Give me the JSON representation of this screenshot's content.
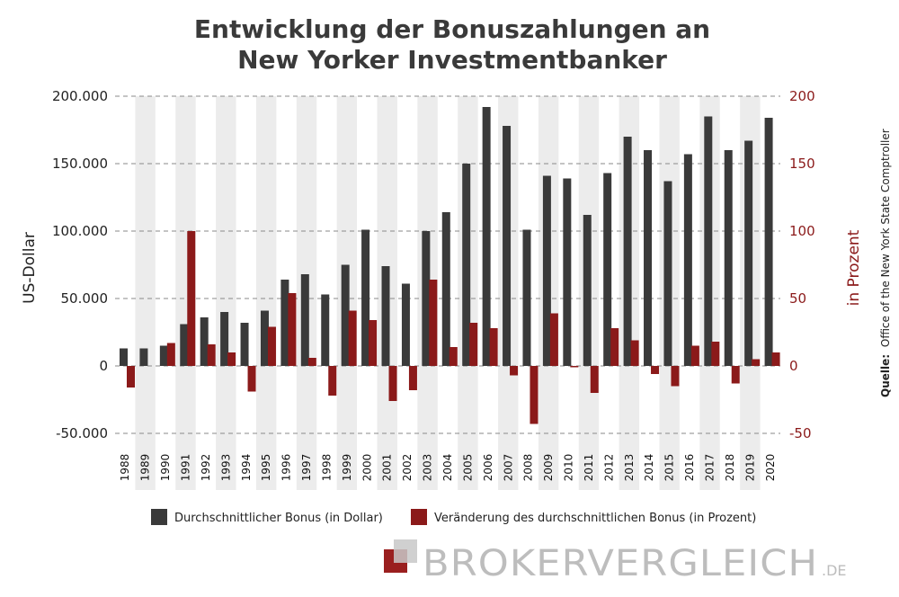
{
  "chart_data": {
    "type": "bar",
    "title_lines": [
      "Entwicklung der Bonuszahlungen an",
      "New Yorker Investmentbanker"
    ],
    "categories": [
      "1988",
      "1989",
      "1990",
      "1991",
      "1992",
      "1993",
      "1994",
      "1995",
      "1996",
      "1997",
      "1998",
      "1999",
      "2000",
      "2001",
      "2002",
      "2003",
      "2004",
      "2005",
      "2006",
      "2007",
      "2008",
      "2009",
      "2010",
      "2011",
      "2012",
      "2013",
      "2014",
      "2015",
      "2016",
      "2017",
      "2018",
      "2019",
      "2020"
    ],
    "series": [
      {
        "name": "Durchschnittlicher Bonus (in Dollar)",
        "axis": "left",
        "color": "#3a3a3a",
        "values": [
          13000,
          13000,
          15000,
          31000,
          36000,
          40000,
          32000,
          41000,
          64000,
          68000,
          53000,
          75000,
          101000,
          74000,
          61000,
          100000,
          114000,
          150000,
          192000,
          178000,
          101000,
          141000,
          139000,
          112000,
          143000,
          170000,
          160000,
          137000,
          157000,
          185000,
          160000,
          167000,
          184000
        ]
      },
      {
        "name": "Veränderung des durchschnittlichen Bonus (in Prozent)",
        "axis": "right",
        "color": "#8b1a1a",
        "values": [
          -16,
          0,
          17,
          100,
          16,
          10,
          -19,
          29,
          54,
          6,
          -22,
          41,
          34,
          -26,
          -18,
          64,
          14,
          32,
          28,
          -7,
          -43,
          39,
          -1,
          -20,
          28,
          19,
          -6,
          -15,
          15,
          18,
          -13,
          5,
          10
        ]
      }
    ],
    "ylabel": "US-Dollar",
    "ylabel_right": "in Prozent",
    "ylim": [
      -50000,
      200000
    ],
    "ylim_right": [
      -50,
      200
    ],
    "yticks": [
      "200.000",
      "150.000",
      "100.000",
      "50.000",
      "0",
      "-50.000"
    ],
    "yticks_right": [
      "200",
      "150",
      "100",
      "50",
      "0",
      "-50"
    ],
    "grid": "horizontal-dashed",
    "legend_position": "bottom",
    "source_label": "Quelle:",
    "source_text": "Office of the New York State Comptroller"
  },
  "logo": {
    "text": "BROKERVERGLEICH",
    "suffix": ".DE",
    "colors": [
      "#9a1f1f",
      "#c0c0c0"
    ]
  }
}
